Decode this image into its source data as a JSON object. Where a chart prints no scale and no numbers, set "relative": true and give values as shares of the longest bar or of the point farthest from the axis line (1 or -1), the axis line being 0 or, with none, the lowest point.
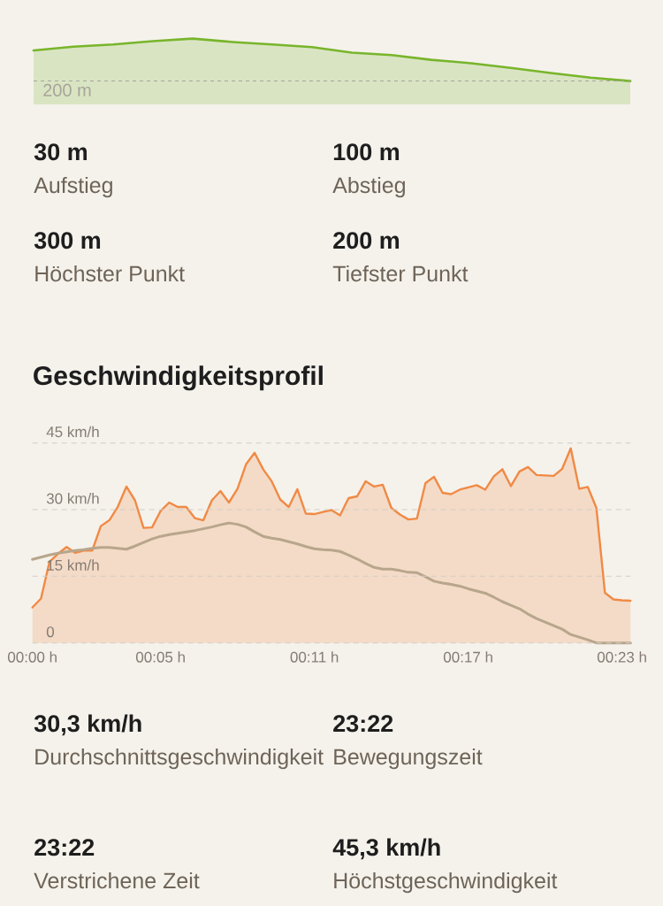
{
  "chart_data": [
    {
      "type": "area",
      "relative": true,
      "categories": [
        null,
        null,
        null,
        null,
        null,
        null,
        null,
        null,
        null,
        null,
        null,
        null,
        null,
        null,
        null,
        null
      ],
      "values": [
        0.72,
        0.81,
        0.86,
        0.94,
        1,
        0.92,
        0.86,
        0.8,
        0.67,
        0.61,
        0.5,
        0.42,
        0.31,
        0.19,
        0.08,
        0
      ],
      "color": "#78b52b",
      "ref_lines": [
        {
          "axis": "y",
          "value": 0,
          "label": "200 m",
          "line_style": "dashed"
        }
      ]
    },
    {
      "type": "other",
      "annotations": [
        "30 m",
        "Aufstieg",
        "100 m",
        "Abstieg",
        "300 m",
        "Höchster Punkt",
        "200 m",
        "Tiefster Punkt"
      ]
    },
    {
      "type": "area",
      "title": "Geschwindigkeitsprofil",
      "ylim": [
        0,
        45
      ],
      "grid": "y",
      "categories": [
        "00:00 h",
        null,
        null,
        null,
        null,
        null,
        null,
        null,
        null,
        null,
        null,
        null,
        null,
        null,
        null,
        "00:05 h",
        null,
        null,
        null,
        null,
        null,
        null,
        null,
        null,
        null,
        null,
        null,
        null,
        null,
        null,
        null,
        null,
        null,
        "00:11 h",
        null,
        null,
        null,
        null,
        null,
        null,
        null,
        null,
        null,
        null,
        null,
        null,
        null,
        null,
        null,
        null,
        null,
        "00:17 h",
        null,
        null,
        null,
        null,
        null,
        null,
        null,
        null,
        null,
        null,
        null,
        null,
        null,
        null,
        null,
        null,
        null,
        "00:23 h",
        null
      ],
      "yticks": [
        0,
        {
          "value": 15,
          "label": "15 km/h"
        },
        {
          "value": 30,
          "label": "30 km/h"
        },
        {
          "value": 45,
          "label": "45 km/h"
        }
      ],
      "series": [
        {
          "type": "area",
          "color": "#f08a45",
          "values": [
            8.0,
            10.0,
            18.3,
            20.1,
            21.6,
            20.3,
            20.8,
            20.8,
            26.3,
            27.6,
            30.7,
            35.2,
            32.1,
            25.9,
            26.0,
            29.7,
            31.6,
            30.6,
            30.6,
            28.1,
            27.6,
            32.1,
            34.2,
            31.6,
            34.7,
            40.2,
            42.8,
            39.1,
            36.4,
            32.3,
            30.6,
            34.6,
            29.1,
            29.0,
            29.5,
            29.9,
            28.7,
            32.6,
            33.0,
            36.4,
            35.2,
            35.6,
            30.4,
            28.9,
            27.8,
            28.0,
            36.0,
            37.4,
            33.8,
            33.5,
            34.5,
            35.0,
            35.5,
            34.5,
            37.5,
            39.1,
            35.3,
            38.6,
            39.6,
            37.8,
            37.7,
            37.6,
            39.2,
            43.8,
            34.7,
            35.1,
            30.4,
            11.3,
            9.8,
            9.6,
            9.5
          ]
        },
        {
          "type": "line",
          "color": "#b8a68c",
          "values": [
            18.8,
            19.3,
            19.8,
            20.2,
            20.5,
            20.8,
            21.0,
            21.3,
            21.5,
            21.5,
            21.3,
            21.1,
            21.8,
            22.6,
            23.4,
            24.0,
            24.4,
            24.7,
            25.0,
            25.3,
            25.7,
            26.1,
            26.6,
            27.0,
            26.7,
            26.1,
            25.0,
            24.0,
            23.6,
            23.3,
            22.8,
            22.3,
            21.7,
            21.2,
            21.0,
            20.9,
            20.6,
            19.8,
            18.9,
            17.9,
            17.0,
            16.6,
            16.6,
            16.3,
            15.9,
            15.8,
            14.9,
            13.9,
            13.5,
            13.2,
            12.8,
            12.2,
            11.7,
            11.2,
            10.3,
            9.3,
            8.5,
            7.7,
            6.5,
            5.5,
            4.7,
            3.9,
            3.1,
            1.9,
            1.3,
            0.7,
            0,
            0,
            0,
            0,
            0
          ]
        }
      ]
    },
    {
      "type": "other",
      "annotations": [
        "30,3 km/h",
        "Durchschnittsgeschwindigkeit",
        "23:22",
        "Bewegungszeit",
        "23:22",
        "Verstrichene Zeit",
        "45,3 km/h",
        "Höchstgeschwindigkeit"
      ]
    }
  ]
}
